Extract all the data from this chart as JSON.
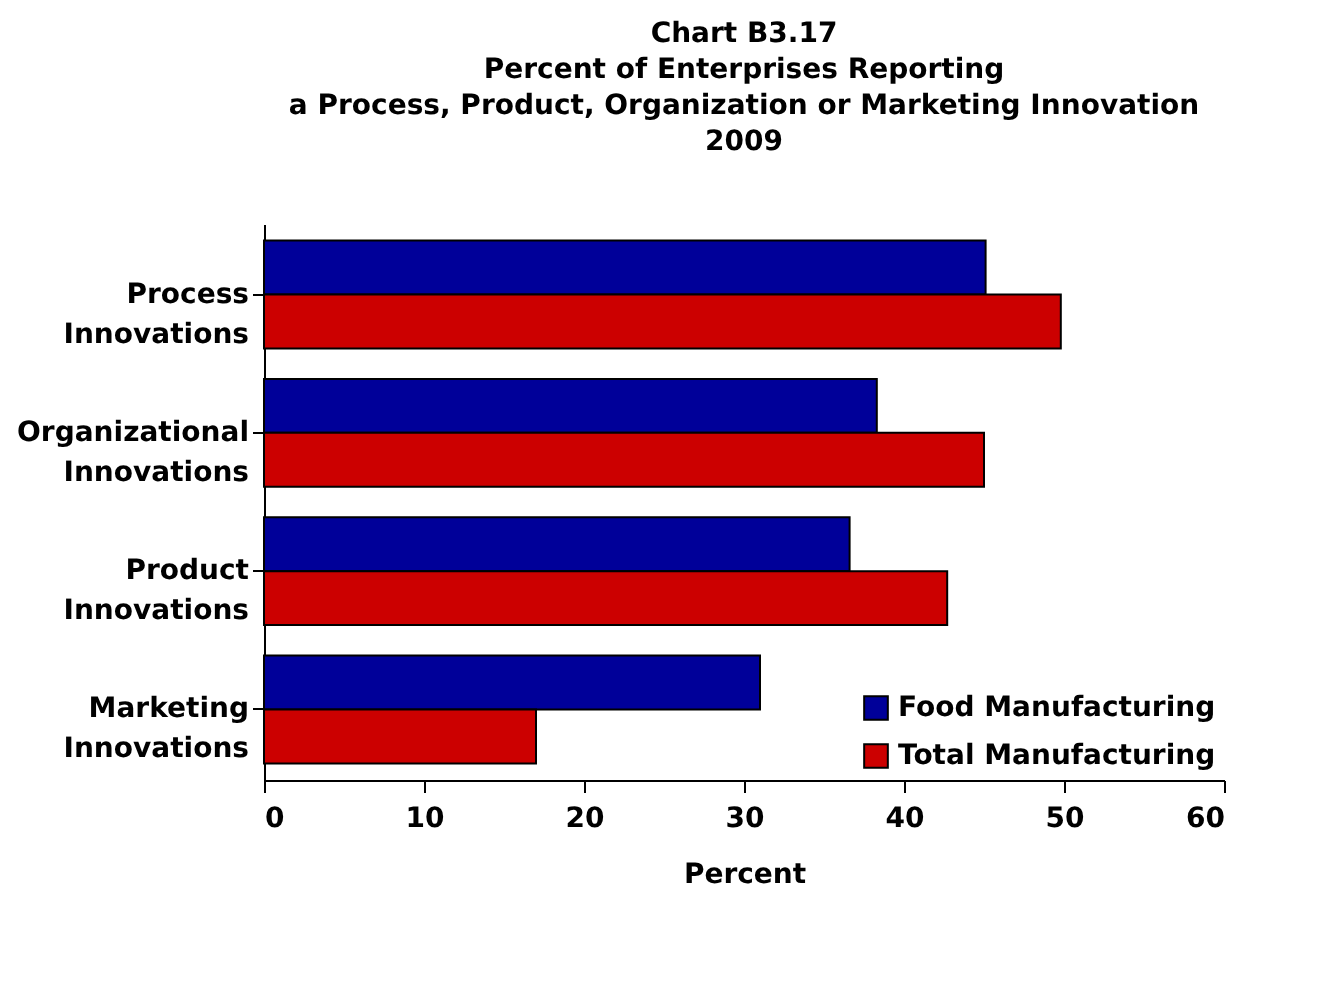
{
  "chart_data": {
    "type": "bar",
    "orientation": "horizontal",
    "title": "Chart B3.17\nPercent of Enterprises Reporting\na Process, Product, Organization or Marketing Innovation\n2009",
    "xlabel": "Percent",
    "categories": [
      "Process Innovations",
      "Organizational Innovations",
      "Product Innovations",
      "Marketing Innovations"
    ],
    "series": [
      {
        "name": "Food Manufacturing",
        "color": "#000099",
        "values": [
          45.1,
          38.3,
          36.6,
          31.0
        ]
      },
      {
        "name": "Total Manufacturing",
        "color": "#cc0000",
        "values": [
          49.8,
          45.0,
          42.7,
          17.0
        ]
      }
    ],
    "xlim": [
      0,
      60
    ],
    "xticks": [
      0,
      10,
      20,
      30,
      40,
      50,
      60
    ],
    "grid": false,
    "legend": "bottom right"
  }
}
